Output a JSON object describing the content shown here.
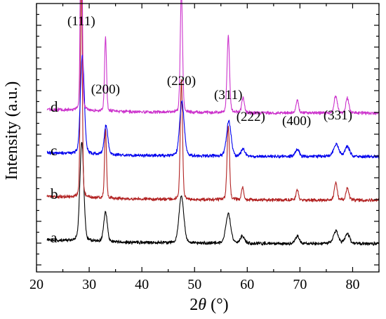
{
  "chart_data": {
    "type": "line",
    "xlabel_main": "2",
    "xlabel_symbol": "θ",
    "xlabel_unit": " (°)",
    "ylabel": "Intensity (a.u.)",
    "xlim": [
      20,
      85
    ],
    "x_ticks": [
      20,
      30,
      40,
      50,
      60,
      70,
      80
    ],
    "grid": false,
    "peaks": [
      {
        "label": "(111)",
        "x": 28.5
      },
      {
        "label": "(200)",
        "x": 33.1
      },
      {
        "label": "(220)",
        "x": 47.5
      },
      {
        "label": "(311)",
        "x": 56.4
      },
      {
        "label": "(222)",
        "x": 59.2
      },
      {
        "label": "(400)",
        "x": 69.5
      },
      {
        "label": "(331)",
        "x": 76.8
      }
    ],
    "series": [
      {
        "name": "a",
        "color": "#000000",
        "offset": 0,
        "peaks": [
          {
            "x": 28.6,
            "h": 0.4,
            "w": 0.6
          },
          {
            "x": 33.1,
            "h": 0.12,
            "w": 0.55
          },
          {
            "x": 47.5,
            "h": 0.19,
            "w": 0.75
          },
          {
            "x": 56.4,
            "h": 0.12,
            "w": 0.75
          },
          {
            "x": 59.1,
            "h": 0.03,
            "w": 0.6
          },
          {
            "x": 69.5,
            "h": 0.03,
            "w": 0.6
          },
          {
            "x": 76.8,
            "h": 0.05,
            "w": 0.8
          },
          {
            "x": 79.0,
            "h": 0.04,
            "w": 0.7
          }
        ]
      },
      {
        "name": "b",
        "color": "#b22222",
        "offset": 1,
        "peaks": [
          {
            "x": 28.5,
            "h": 0.92,
            "w": 0.3
          },
          {
            "x": 33.1,
            "h": 0.28,
            "w": 0.3
          },
          {
            "x": 47.5,
            "h": 0.48,
            "w": 0.35
          },
          {
            "x": 56.4,
            "h": 0.3,
            "w": 0.38
          },
          {
            "x": 59.1,
            "h": 0.05,
            "w": 0.35
          },
          {
            "x": 69.5,
            "h": 0.04,
            "w": 0.38
          },
          {
            "x": 76.8,
            "h": 0.07,
            "w": 0.45
          },
          {
            "x": 79.0,
            "h": 0.05,
            "w": 0.45
          }
        ]
      },
      {
        "name": "c",
        "color": "#0000ee",
        "offset": 2,
        "peaks": [
          {
            "x": 28.7,
            "h": 0.4,
            "w": 0.6
          },
          {
            "x": 33.2,
            "h": 0.12,
            "w": 0.55
          },
          {
            "x": 47.6,
            "h": 0.22,
            "w": 0.7
          },
          {
            "x": 56.5,
            "h": 0.14,
            "w": 0.7
          },
          {
            "x": 59.2,
            "h": 0.03,
            "w": 0.6
          },
          {
            "x": 69.5,
            "h": 0.03,
            "w": 0.6
          },
          {
            "x": 76.9,
            "h": 0.05,
            "w": 0.8
          },
          {
            "x": 79.0,
            "h": 0.04,
            "w": 0.7
          }
        ]
      },
      {
        "name": "d",
        "color": "#cc33cc",
        "offset": 3,
        "peaks": [
          {
            "x": 28.5,
            "h": 1.0,
            "w": 0.28
          },
          {
            "x": 33.1,
            "h": 0.3,
            "w": 0.3
          },
          {
            "x": 47.5,
            "h": 0.49,
            "w": 0.35
          },
          {
            "x": 56.4,
            "h": 0.31,
            "w": 0.38
          },
          {
            "x": 59.2,
            "h": 0.06,
            "w": 0.4
          },
          {
            "x": 69.5,
            "h": 0.05,
            "w": 0.4
          },
          {
            "x": 76.8,
            "h": 0.07,
            "w": 0.5
          },
          {
            "x": 79.0,
            "h": 0.06,
            "w": 0.45
          }
        ]
      }
    ]
  }
}
